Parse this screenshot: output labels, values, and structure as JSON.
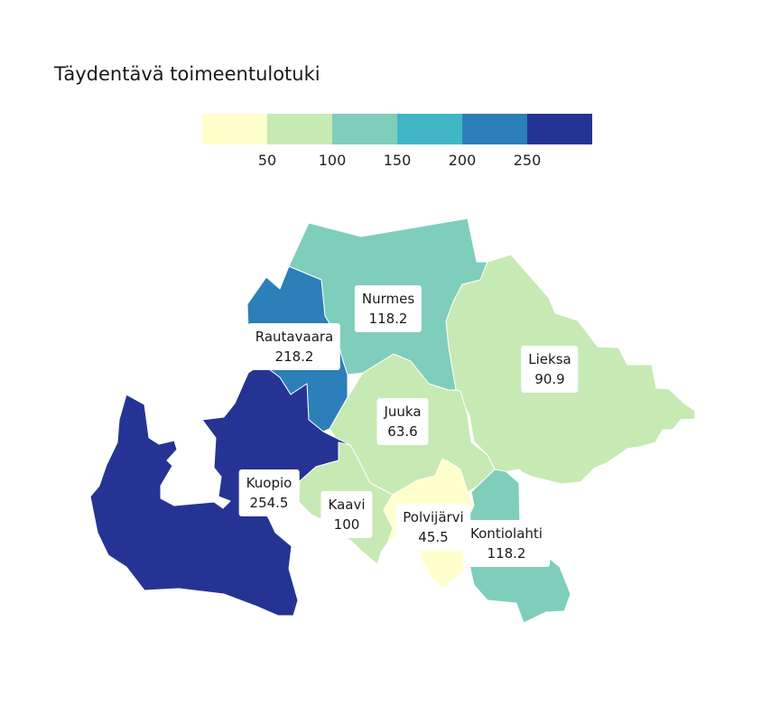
{
  "title": "Täydentävä toimeentulotuki",
  "legend": {
    "colors": [
      "#ffffcc",
      "#c7e9b4",
      "#7fcdbb",
      "#41b6c4",
      "#2c7fb8",
      "#253494"
    ],
    "ticks": [
      "50",
      "100",
      "150",
      "200",
      "250"
    ]
  },
  "regions": [
    {
      "name": "Nurmes",
      "value": "118.2",
      "color": "#7fcdbb"
    },
    {
      "name": "Rautavaara",
      "value": "218.2",
      "color": "#2c7fb8"
    },
    {
      "name": "Lieksa",
      "value": "90.9",
      "color": "#c7e9b4"
    },
    {
      "name": "Juuka",
      "value": "63.6",
      "color": "#c7e9b4"
    },
    {
      "name": "Kuopio",
      "value": "254.5",
      "color": "#253494"
    },
    {
      "name": "Kaavi",
      "value": "100",
      "color": "#c7e9b4"
    },
    {
      "name": "Polvijärvi",
      "value": "45.5",
      "color": "#ffffcc"
    },
    {
      "name": "Kontiolahti",
      "value": "118.2",
      "color": "#7fcdbb"
    }
  ]
}
